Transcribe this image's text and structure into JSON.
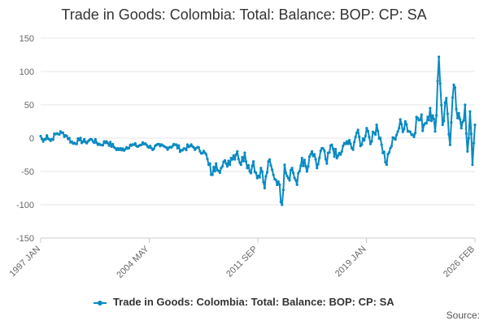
{
  "chart_data": {
    "type": "line",
    "title": "Trade in Goods: Colombia: Total: Balance: BOP: CP: SA",
    "xlabel": "",
    "ylabel": "",
    "ylim": [
      -150,
      150
    ],
    "yticks": [
      150,
      100,
      50,
      0,
      -50,
      -100,
      -150
    ],
    "xlim": [
      "1997-01",
      "2026-02"
    ],
    "xticks": [
      "1997 JAN",
      "2004 MAY",
      "2011 SEP",
      "2019 JAN",
      "2026 FEB"
    ],
    "grid": true,
    "legend_position": "bottom",
    "frequency": "monthly",
    "series": [
      {
        "name": "Trade in Goods: Colombia: Total: Balance: BOP: CP: SA",
        "color": "#0a8ac2",
        "anchors": [
          [
            "1997-01",
            3
          ],
          [
            "1997-03",
            -5
          ],
          [
            "1997-06",
            4
          ],
          [
            "1997-09",
            -4
          ],
          [
            "1998-01",
            6
          ],
          [
            "1998-06",
            8
          ],
          [
            "1998-10",
            3
          ],
          [
            "1999-03",
            -8
          ],
          [
            "1999-08",
            -3
          ],
          [
            "2000-01",
            -6
          ],
          [
            "2000-06",
            -2
          ],
          [
            "2001-01",
            -10
          ],
          [
            "2001-06",
            -5
          ],
          [
            "2002-01",
            -15
          ],
          [
            "2002-06",
            -18
          ],
          [
            "2003-01",
            -10
          ],
          [
            "2003-06",
            -12
          ],
          [
            "2004-01",
            -8
          ],
          [
            "2004-06",
            -15
          ],
          [
            "2005-01",
            -12
          ],
          [
            "2005-06",
            -14
          ],
          [
            "2006-01",
            -10
          ],
          [
            "2006-06",
            -18
          ],
          [
            "2007-01",
            -12
          ],
          [
            "2007-06",
            -15
          ],
          [
            "2008-01",
            -22
          ],
          [
            "2008-04",
            -40
          ],
          [
            "2008-07",
            -55
          ],
          [
            "2008-10",
            -38
          ],
          [
            "2009-02",
            -45
          ],
          [
            "2009-06",
            -38
          ],
          [
            "2009-10",
            -30
          ],
          [
            "2010-03",
            -20
          ],
          [
            "2010-06",
            -40
          ],
          [
            "2010-09",
            -22
          ],
          [
            "2011-01",
            -50
          ],
          [
            "2011-04",
            -35
          ],
          [
            "2011-07",
            -60
          ],
          [
            "2011-10",
            -45
          ],
          [
            "2012-01",
            -75
          ],
          [
            "2012-04",
            -35
          ],
          [
            "2012-08",
            -55
          ],
          [
            "2012-12",
            -65
          ],
          [
            "2013-03",
            -100
          ],
          [
            "2013-05",
            -40
          ],
          [
            "2013-08",
            -60
          ],
          [
            "2013-11",
            -45
          ],
          [
            "2014-03",
            -70
          ],
          [
            "2014-07",
            -30
          ],
          [
            "2014-11",
            -50
          ],
          [
            "2015-03",
            -20
          ],
          [
            "2015-07",
            -45
          ],
          [
            "2015-11",
            -15
          ],
          [
            "2016-03",
            -38
          ],
          [
            "2016-07",
            -10
          ],
          [
            "2016-11",
            -30
          ],
          [
            "2017-03",
            -20
          ],
          [
            "2017-07",
            -5
          ],
          [
            "2017-11",
            -15
          ],
          [
            "2018-03",
            8
          ],
          [
            "2018-07",
            -10
          ],
          [
            "2018-11",
            15
          ],
          [
            "2019-03",
            -5
          ],
          [
            "2019-07",
            20
          ],
          [
            "2019-11",
            -10
          ],
          [
            "2020-03",
            -40
          ],
          [
            "2020-06",
            -15
          ],
          [
            "2020-09",
            0
          ],
          [
            "2021-01",
            15
          ],
          [
            "2021-06",
            25
          ],
          [
            "2021-11",
            5
          ],
          [
            "2022-04",
            30
          ],
          [
            "2022-09",
            20
          ],
          [
            "2023-02",
            45
          ],
          [
            "2023-06",
            10
          ],
          [
            "2023-09",
            122
          ],
          [
            "2023-12",
            20
          ],
          [
            "2024-03",
            60
          ],
          [
            "2024-06",
            -10
          ],
          [
            "2024-09",
            80
          ],
          [
            "2024-12",
            30
          ],
          [
            "2025-03",
            15
          ],
          [
            "2025-06",
            50
          ],
          [
            "2025-08",
            -20
          ],
          [
            "2025-10",
            40
          ],
          [
            "2025-12",
            -40
          ],
          [
            "2026-02",
            20
          ]
        ]
      }
    ]
  },
  "legend": {
    "label": "Trade in Goods: Colombia: Total: Balance: BOP: CP: SA"
  },
  "footer": {
    "source_label": "Source:"
  }
}
